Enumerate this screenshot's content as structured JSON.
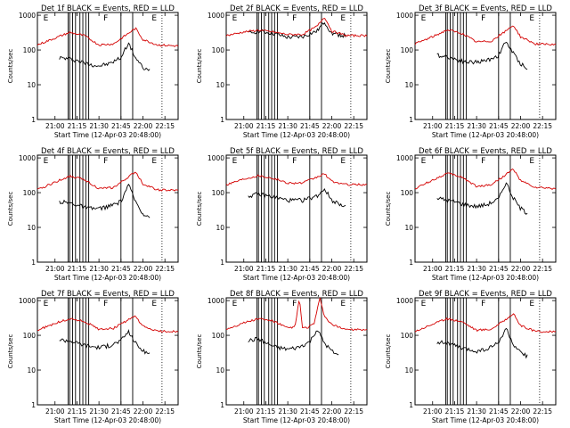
{
  "figure": {
    "xlabel": "Start Time (12-Apr-03 20:48:00)",
    "ylabel": "Counts/sec",
    "x_tick_labels": [
      "21:00",
      "21:15",
      "21:30",
      "21:45",
      "22:00",
      "22:15"
    ],
    "y_tick_labels": [
      "1",
      "10",
      "100",
      "1000"
    ],
    "colors": {
      "events": "#000000",
      "lld": "#d40000",
      "marker": "#000000"
    }
  },
  "chart_data": [
    {
      "type": "line",
      "title": "Det 1f BLACK = Events, RED = LLD",
      "xlim_minutes_from_2048": [
        0,
        96
      ],
      "ylim": [
        1,
        1200
      ],
      "yscale": "log",
      "region_labels": [
        "E",
        "F",
        "E"
      ],
      "series": [
        {
          "name": "Events",
          "color": "#000000",
          "x": [
            "21:03",
            "21:10",
            "21:15",
            "21:22",
            "21:30",
            "21:37",
            "21:45",
            "21:50",
            "21:55",
            "22:00",
            "22:05"
          ],
          "values": [
            60,
            55,
            50,
            40,
            35,
            40,
            60,
            160,
            60,
            30,
            25
          ]
        },
        {
          "name": "LLD",
          "color": "#d40000",
          "x": [
            "20:48",
            "21:00",
            "21:10",
            "21:20",
            "21:30",
            "21:40",
            "21:50",
            "21:55",
            "22:00",
            "22:10",
            "22:24"
          ],
          "values": [
            140,
            220,
            320,
            260,
            140,
            150,
            300,
            420,
            200,
            140,
            130
          ]
        }
      ]
    },
    {
      "type": "line",
      "title": "Det 2f BLACK = Events, RED = LLD",
      "xlim_minutes_from_2048": [
        0,
        96
      ],
      "ylim": [
        1,
        1200
      ],
      "yscale": "log",
      "region_labels": [
        "E",
        "F",
        "E"
      ],
      "series": [
        {
          "name": "Events",
          "color": "#000000",
          "x": [
            "21:03",
            "21:10",
            "21:20",
            "21:30",
            "21:40",
            "21:50",
            "21:55",
            "22:00",
            "22:10"
          ],
          "values": [
            300,
            350,
            300,
            230,
            240,
            350,
            650,
            300,
            250
          ]
        },
        {
          "name": "LLD",
          "color": "#d40000",
          "x": [
            "20:48",
            "21:00",
            "21:10",
            "21:20",
            "21:30",
            "21:40",
            "21:50",
            "21:55",
            "22:00",
            "22:10",
            "22:24"
          ],
          "values": [
            260,
            330,
            370,
            330,
            280,
            280,
            480,
            900,
            350,
            260,
            260
          ]
        }
      ]
    },
    {
      "type": "line",
      "title": "Det 3f BLACK = Events, RED = LLD",
      "xlim_minutes_from_2048": [
        0,
        96
      ],
      "ylim": [
        1,
        1200
      ],
      "yscale": "log",
      "region_labels": [
        "E",
        "F",
        "E"
      ],
      "series": [
        {
          "name": "Events",
          "color": "#000000",
          "x": [
            "21:03",
            "21:10",
            "21:15",
            "21:22",
            "21:30",
            "21:37",
            "21:45",
            "21:50",
            "21:55",
            "22:00",
            "22:05"
          ],
          "values": [
            70,
            65,
            55,
            45,
            45,
            50,
            70,
            180,
            80,
            40,
            30
          ]
        },
        {
          "name": "LLD",
          "color": "#d40000",
          "x": [
            "20:48",
            "21:00",
            "21:10",
            "21:20",
            "21:30",
            "21:40",
            "21:50",
            "21:55",
            "22:00",
            "22:10",
            "22:24"
          ],
          "values": [
            150,
            240,
            380,
            300,
            170,
            180,
            350,
            520,
            240,
            150,
            140
          ]
        }
      ]
    },
    {
      "type": "line",
      "title": "Det 4f BLACK = Events, RED = LLD",
      "xlim_minutes_from_2048": [
        0,
        96
      ],
      "ylim": [
        1,
        1200
      ],
      "yscale": "log",
      "region_labels": [
        "E",
        "F",
        "E"
      ],
      "series": [
        {
          "name": "Events",
          "color": "#000000",
          "x": [
            "21:03",
            "21:10",
            "21:15",
            "21:22",
            "21:30",
            "21:37",
            "21:45",
            "21:50",
            "21:55",
            "22:00",
            "22:05"
          ],
          "values": [
            55,
            50,
            45,
            35,
            35,
            40,
            55,
            170,
            55,
            25,
            20
          ]
        },
        {
          "name": "LLD",
          "color": "#d40000",
          "x": [
            "20:48",
            "21:00",
            "21:10",
            "21:20",
            "21:30",
            "21:40",
            "21:50",
            "21:55",
            "22:00",
            "22:10",
            "22:24"
          ],
          "values": [
            120,
            200,
            300,
            240,
            130,
            140,
            280,
            400,
            180,
            120,
            115
          ]
        }
      ]
    },
    {
      "type": "line",
      "title": "Det 5f BLACK = Events, RED = LLD",
      "xlim_minutes_from_2048": [
        0,
        96
      ],
      "ylim": [
        1,
        1200
      ],
      "yscale": "log",
      "region_labels": [
        "E",
        "F",
        "E"
      ],
      "series": [
        {
          "name": "Events",
          "color": "#000000",
          "x": [
            "21:03",
            "21:10",
            "21:20",
            "21:30",
            "21:40",
            "21:50",
            "21:55",
            "22:00",
            "22:10"
          ],
          "values": [
            80,
            90,
            75,
            60,
            60,
            80,
            130,
            60,
            40
          ]
        },
        {
          "name": "LLD",
          "color": "#d40000",
          "x": [
            "20:48",
            "21:00",
            "21:10",
            "21:20",
            "21:30",
            "21:40",
            "21:50",
            "21:55",
            "22:00",
            "22:10",
            "22:24"
          ],
          "values": [
            170,
            250,
            310,
            260,
            190,
            190,
            280,
            350,
            210,
            170,
            170
          ]
        }
      ]
    },
    {
      "type": "line",
      "title": "Det 6f BLACK = Events, RED = LLD",
      "xlim_minutes_from_2048": [
        0,
        96
      ],
      "ylim": [
        1,
        1200
      ],
      "yscale": "log",
      "region_labels": [
        "E",
        "F",
        "E"
      ],
      "series": [
        {
          "name": "Events",
          "color": "#000000",
          "x": [
            "21:03",
            "21:10",
            "21:15",
            "21:22",
            "21:30",
            "21:37",
            "21:45",
            "21:50",
            "21:55",
            "22:00",
            "22:05"
          ],
          "values": [
            70,
            60,
            55,
            45,
            40,
            45,
            65,
            200,
            70,
            35,
            25
          ]
        },
        {
          "name": "LLD",
          "color": "#d40000",
          "x": [
            "20:48",
            "21:00",
            "21:10",
            "21:20",
            "21:30",
            "21:40",
            "21:50",
            "21:55",
            "22:00",
            "22:10",
            "22:24"
          ],
          "values": [
            130,
            230,
            360,
            280,
            150,
            170,
            330,
            480,
            220,
            140,
            130
          ]
        }
      ]
    },
    {
      "type": "line",
      "title": "Det 7f BLACK = Events, RED = LLD",
      "xlim_minutes_from_2048": [
        0,
        96
      ],
      "ylim": [
        1,
        1200
      ],
      "yscale": "log",
      "region_labels": [
        "E",
        "F",
        "E"
      ],
      "series": [
        {
          "name": "Events",
          "color": "#000000",
          "x": [
            "21:03",
            "21:10",
            "21:15",
            "21:22",
            "21:30",
            "21:37",
            "21:45",
            "21:50",
            "21:55",
            "22:00",
            "22:05"
          ],
          "values": [
            75,
            70,
            60,
            50,
            45,
            50,
            70,
            130,
            60,
            35,
            30
          ]
        },
        {
          "name": "LLD",
          "color": "#d40000",
          "x": [
            "20:48",
            "21:00",
            "21:10",
            "21:20",
            "21:30",
            "21:40",
            "21:50",
            "21:55",
            "22:00",
            "22:10",
            "22:24"
          ],
          "values": [
            140,
            220,
            300,
            250,
            150,
            160,
            280,
            350,
            180,
            130,
            130
          ]
        }
      ]
    },
    {
      "type": "line",
      "title": "Det 8f BLACK = Events, RED = LLD",
      "xlim_minutes_from_2048": [
        0,
        96
      ],
      "ylim": [
        1,
        1200
      ],
      "yscale": "log",
      "region_labels": [
        "E",
        "F",
        "E"
      ],
      "series": [
        {
          "name": "Events",
          "color": "#000000",
          "x": [
            "21:03",
            "21:10",
            "21:15",
            "21:22",
            "21:30",
            "21:37",
            "21:45",
            "21:50",
            "21:55",
            "22:00",
            "22:05"
          ],
          "values": [
            70,
            80,
            60,
            45,
            40,
            45,
            65,
            150,
            60,
            35,
            25
          ]
        },
        {
          "name": "LLD",
          "color": "#d40000",
          "x": [
            "20:48",
            "21:00",
            "21:10",
            "21:20",
            "21:30",
            "21:35",
            "21:38",
            "21:40",
            "21:44",
            "21:48",
            "21:52",
            "21:55",
            "22:00",
            "22:10",
            "22:24"
          ],
          "values": [
            150,
            230,
            300,
            260,
            160,
            180,
            1200,
            160,
            170,
            220,
            1200,
            350,
            200,
            150,
            140
          ]
        }
      ]
    },
    {
      "type": "line",
      "title": "Det 9f BLACK = Events, RED = LLD",
      "xlim_minutes_from_2048": [
        0,
        96
      ],
      "ylim": [
        1,
        1200
      ],
      "yscale": "log",
      "region_labels": [
        "E",
        "F",
        "E"
      ],
      "series": [
        {
          "name": "Events",
          "color": "#000000",
          "x": [
            "21:03",
            "21:10",
            "21:15",
            "21:22",
            "21:30",
            "21:37",
            "21:45",
            "21:50",
            "21:55",
            "22:00",
            "22:05"
          ],
          "values": [
            65,
            60,
            50,
            40,
            35,
            40,
            60,
            160,
            55,
            30,
            25
          ]
        },
        {
          "name": "LLD",
          "color": "#d40000",
          "x": [
            "20:48",
            "21:00",
            "21:10",
            "21:20",
            "21:30",
            "21:40",
            "21:50",
            "21:55",
            "22:00",
            "22:10",
            "22:24"
          ],
          "values": [
            130,
            210,
            300,
            250,
            140,
            150,
            290,
            420,
            190,
            130,
            125
          ]
        }
      ]
    }
  ]
}
